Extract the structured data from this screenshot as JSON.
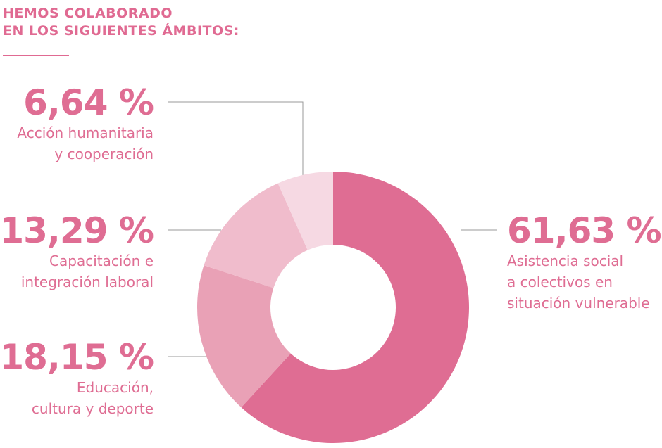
{
  "title_line1": "HEMOS COLABORADO",
  "title_line2": "EN LOS SIGUIENTES ÁMBITOS:",
  "chart_data": {
    "type": "pie",
    "donut": true,
    "start": "top, clockwise",
    "slices": [
      {
        "value": 61.63,
        "label": "61,63 %",
        "desc1": "Asistencia social",
        "desc2": "a colectivos en",
        "desc3": "situación vulnerable",
        "color": "#df6d93"
      },
      {
        "value": 18.15,
        "label": "18,15 %",
        "desc1": "Educación,",
        "desc2": "cultura y deporte",
        "color": "#e9a1b6"
      },
      {
        "value": 13.29,
        "label": "13,29 %",
        "desc1": "Capacitación e",
        "desc2": "integración laboral",
        "color": "#f0bccc"
      },
      {
        "value": 6.64,
        "label": "6,64 %",
        "desc1": "Acción humanitaria",
        "desc2": "y cooperación",
        "color": "#f6d9e3"
      }
    ]
  }
}
